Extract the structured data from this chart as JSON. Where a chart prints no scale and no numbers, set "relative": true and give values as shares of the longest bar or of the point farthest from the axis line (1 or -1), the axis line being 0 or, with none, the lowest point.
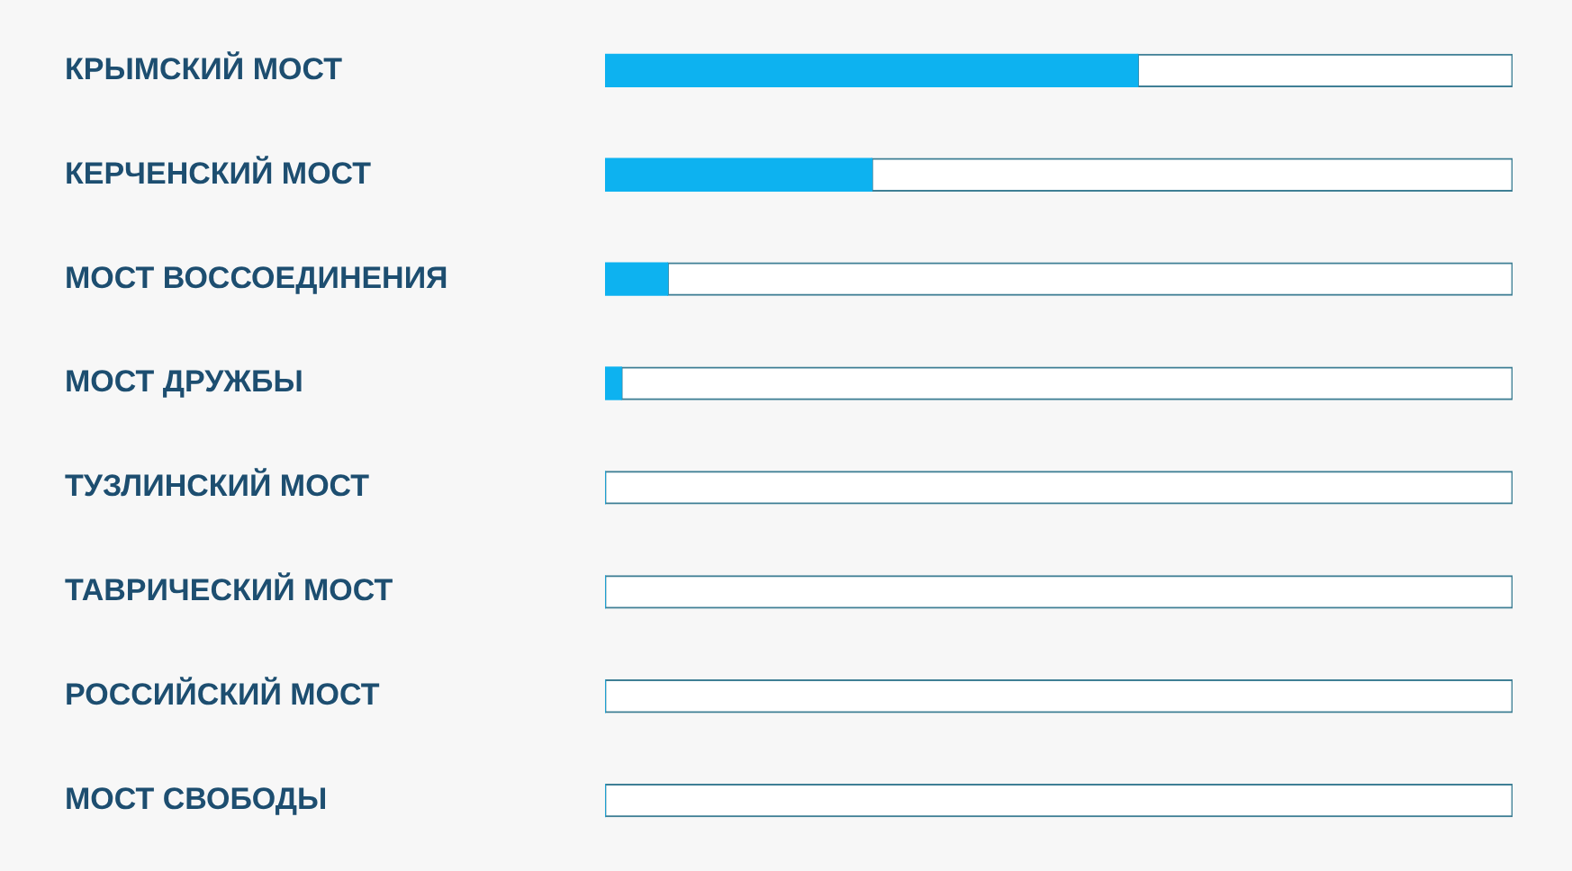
{
  "chart_data": {
    "type": "bar",
    "orientation": "horizontal",
    "relative": true,
    "stacked": true,
    "categories": [
      "КРЫМСКИЙ МОСТ",
      "КЕРЧЕНСКИЙ МОСТ",
      "МОСТ ВОССОЕДИНЕНИЯ",
      "МОСТ ДРУЖБЫ",
      "ТУЗЛИНСКИЙ МОСТ",
      "ТАВРИЧЕСКИЙ МОСТ",
      "РОССИЙСКИЙ МОСТ",
      "МОСТ СВОБОДЫ"
    ],
    "series": [
      {
        "color": "#0db2f0",
        "values": [
          0.587,
          0.294,
          0.069,
          0.018,
          0,
          0,
          0,
          0
        ]
      },
      {
        "color": "#ffffff",
        "values": [
          0.413,
          0.706,
          0.931,
          0.982,
          1,
          1,
          1,
          1
        ]
      }
    ]
  }
}
